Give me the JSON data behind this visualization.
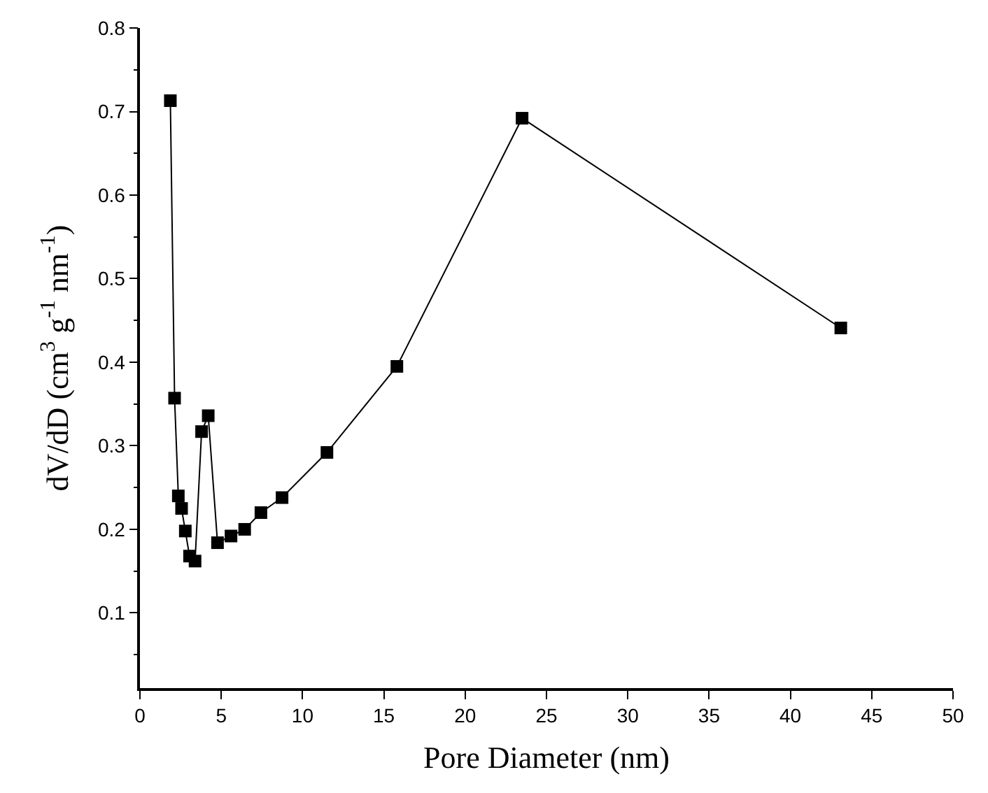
{
  "chart_data": {
    "type": "line",
    "xlabel": "Pore Diameter (nm)",
    "ylabel": "dV/dD (cm$^{3}$ g$^{-1}$ nm$^{-1}$)",
    "x": [
      1.87,
      2.13,
      2.36,
      2.56,
      2.79,
      3.05,
      3.39,
      3.79,
      4.2,
      4.77,
      5.6,
      6.44,
      7.44,
      8.74,
      11.5,
      15.8,
      23.5,
      43.1
    ],
    "series": [
      {
        "color": "#000000",
        "values": [
          0.713,
          0.357,
          0.24,
          0.225,
          0.198,
          0.168,
          0.162,
          0.317,
          0.336,
          0.184,
          0.192,
          0.2,
          0.22,
          0.238,
          0.292,
          0.395,
          0.692,
          0.441
        ]
      }
    ],
    "xlim": [
      0,
      50
    ],
    "xticks": [
      0,
      5,
      10,
      15,
      20,
      25,
      30,
      35,
      40,
      45,
      50
    ],
    "ylim": [
      0.01,
      0.8
    ],
    "yticks": [
      0.1,
      0.2,
      0.3,
      0.4,
      0.5,
      0.6,
      0.7,
      0.8
    ],
    "marker": "square",
    "line_style": "solid"
  }
}
